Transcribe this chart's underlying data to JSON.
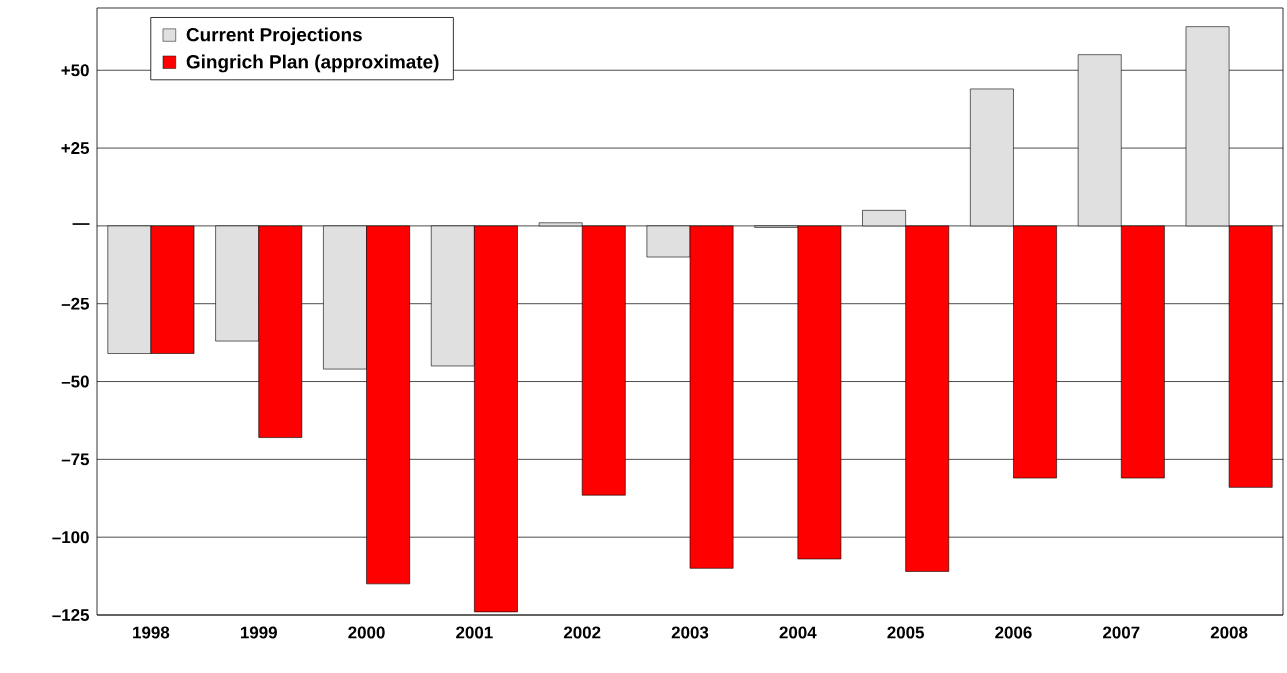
{
  "chart_data": {
    "type": "bar",
    "categories": [
      "1998",
      "1999",
      "2000",
      "2001",
      "2002",
      "2003",
      "2004",
      "2005",
      "2006",
      "2007",
      "2008"
    ],
    "series": [
      {
        "name": "Current Projections",
        "color": "#e0e0e0",
        "values": [
          -41,
          -37,
          -46,
          -45,
          1,
          -10,
          -0.5,
          5,
          44,
          55,
          64
        ]
      },
      {
        "name": "Gingrich Plan (approximate)",
        "color": "#ff0000",
        "values": [
          -41,
          -68,
          -115,
          -124,
          -86.5,
          -110,
          -107,
          -111,
          -81,
          -81,
          -84
        ]
      }
    ],
    "ylim": [
      -125,
      70
    ],
    "yticks": [
      {
        "value": -125,
        "label": "–125"
      },
      {
        "value": -100,
        "label": "–100"
      },
      {
        "value": -75,
        "label": "–75"
      },
      {
        "value": -50,
        "label": "–50"
      },
      {
        "value": -25,
        "label": "–25"
      },
      {
        "value": 0,
        "label": "—"
      },
      {
        "value": 25,
        "label": "+25"
      },
      {
        "value": 50,
        "label": "+50"
      }
    ],
    "grid": "y",
    "legend": "top left"
  }
}
